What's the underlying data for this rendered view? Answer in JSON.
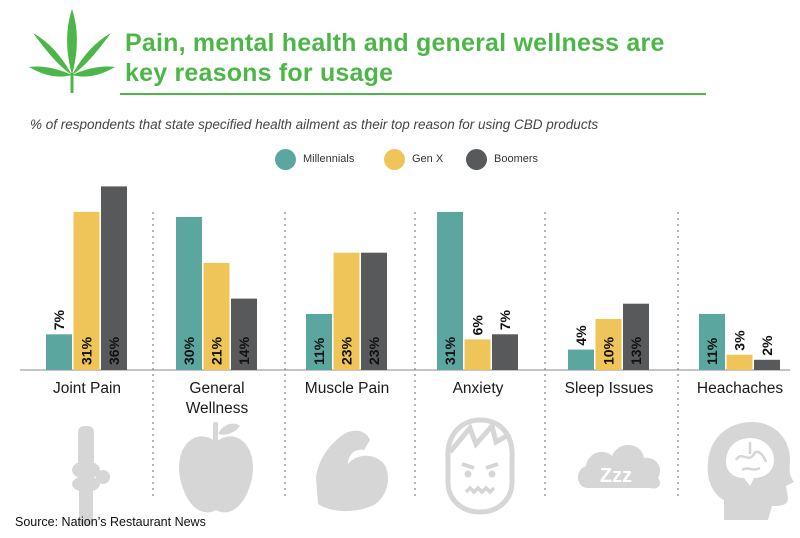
{
  "header": {
    "title_line1": "Pain, mental health and general wellness are",
    "title_line2": "key reasons for usage",
    "subtitle": "% of respondents that state specified health ailment as their top reason for using CBD products"
  },
  "source": "Source: Nation’s Restaurant News",
  "colors": {
    "Millennials": "#5ba7a0",
    "Gen X": "#efc458",
    "Boomers": "#58595b",
    "icons": "#d6d6d6",
    "accent": "#4cb748"
  },
  "icons": [
    "knee-joint-icon",
    "apple-icon",
    "flexed-arm-icon",
    "anxious-face-icon",
    "sleep-cloud-icon",
    "brain-head-icon"
  ],
  "icon_text": {
    "sleep": "Zzz"
  },
  "chart_data": {
    "type": "bar",
    "title": "Pain, mental health and general wellness are key reasons for usage",
    "subtitle": "% of respondents that state specified health ailment as their top reason for using CBD products",
    "categories": [
      [
        "Joint Pain"
      ],
      [
        "General",
        "Wellness"
      ],
      [
        "Muscle Pain"
      ],
      [
        "Anxiety"
      ],
      [
        "Sleep Issues"
      ],
      [
        "Heachaches"
      ]
    ],
    "series": [
      {
        "name": "Millennials",
        "values": [
          7,
          30,
          11,
          31,
          4,
          11
        ]
      },
      {
        "name": "Gen X",
        "values": [
          31,
          21,
          23,
          6,
          10,
          3
        ]
      },
      {
        "name": "Boomers",
        "values": [
          36,
          14,
          23,
          7,
          13,
          2
        ]
      }
    ],
    "value_suffix": "%",
    "legend_position": "top-center",
    "grid": false
  }
}
